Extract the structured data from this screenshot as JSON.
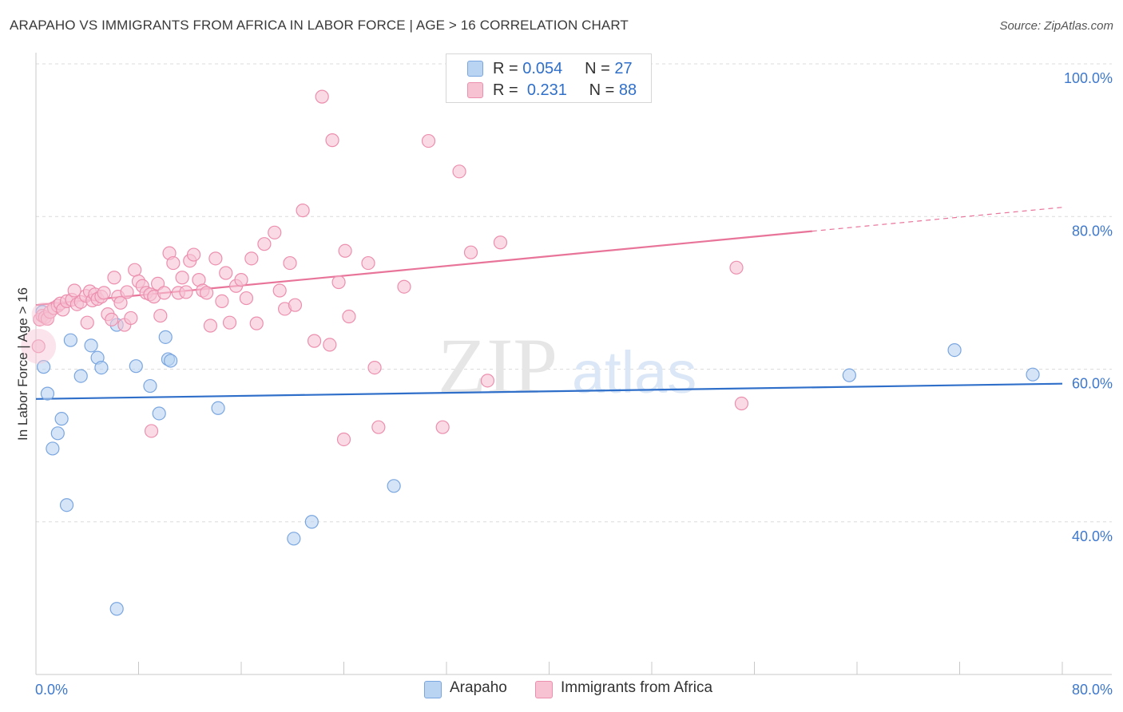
{
  "title": "ARAPAHO VS IMMIGRANTS FROM AFRICA IN LABOR FORCE | AGE > 16 CORRELATION CHART",
  "source": "Source: ZipAtlas.com",
  "watermark": {
    "zip": "ZIP",
    "atlas": "atlas"
  },
  "legend_top": [
    {
      "r_label": "R =",
      "r_value": "0.054",
      "n_label": "N =",
      "n_value": "27",
      "color": "#b9d3f2",
      "border": "#7aa6e0"
    },
    {
      "r_label": "R =",
      "r_value": "0.231",
      "n_label": "N =",
      "n_value": "88",
      "color": "#f7c3d3",
      "border": "#ec8fae"
    }
  ],
  "legend_bottom": [
    {
      "label": "Arapaho",
      "color": "#b9d3f2",
      "border": "#7aa6e0"
    },
    {
      "label": "Immigrants from Africa",
      "color": "#f7c3d3",
      "border": "#ec8fae"
    }
  ],
  "chart_data": {
    "type": "scatter",
    "xlabel": "",
    "ylabel": "In Labor Force | Age > 16",
    "xlim": [
      0,
      80
    ],
    "ylim": [
      20,
      100
    ],
    "x_tick_labels": [
      {
        "value": 0,
        "label": "0.0%"
      },
      {
        "value": 80,
        "label": "80.0%"
      }
    ],
    "y_tick_labels": [
      {
        "value": 100,
        "label": "100.0%"
      },
      {
        "value": 80,
        "label": "80.0%"
      },
      {
        "value": 60,
        "label": "60.0%"
      },
      {
        "value": 40,
        "label": "40.0%"
      }
    ],
    "grid": true,
    "series": [
      {
        "name": "Arapaho",
        "color": "#7aa6e0",
        "fill": "#b9d3f2",
        "line_color": "#2f6fc9",
        "trend": {
          "x": [
            0,
            80
          ],
          "y": [
            56.1,
            58.1
          ],
          "dashed_from": null
        },
        "points": [
          [
            0.5,
            67.5
          ],
          [
            0.6,
            60.3
          ],
          [
            0.9,
            56.8
          ],
          [
            1.3,
            49.6
          ],
          [
            1.7,
            51.6
          ],
          [
            2.0,
            53.5
          ],
          [
            2.4,
            42.2
          ],
          [
            2.7,
            63.8
          ],
          [
            3.5,
            59.1
          ],
          [
            4.3,
            63.1
          ],
          [
            4.8,
            61.5
          ],
          [
            5.1,
            60.2
          ],
          [
            6.3,
            28.6
          ],
          [
            6.3,
            65.8
          ],
          [
            7.8,
            60.4
          ],
          [
            8.9,
            57.8
          ],
          [
            9.6,
            54.2
          ],
          [
            10.1,
            64.2
          ],
          [
            10.3,
            61.3
          ],
          [
            10.5,
            61.1
          ],
          [
            14.2,
            54.9
          ],
          [
            20.1,
            37.8
          ],
          [
            21.5,
            40.0
          ],
          [
            27.9,
            44.7
          ],
          [
            63.4,
            59.2
          ],
          [
            71.6,
            62.5
          ],
          [
            77.7,
            59.3
          ]
        ]
      },
      {
        "name": "Immigrants from Africa",
        "color": "#ec8fae",
        "fill": "#f7c3d3",
        "line_color": "#e8749a",
        "trend": {
          "x": [
            0,
            80
          ],
          "y": [
            68.4,
            81.2
          ],
          "dashed_from": 60.5
        },
        "points": [
          [
            0.2,
            63.0
          ],
          [
            0.3,
            66.5
          ],
          [
            0.5,
            67.0
          ],
          [
            0.7,
            66.8
          ],
          [
            0.9,
            66.6
          ],
          [
            1.1,
            67.5
          ],
          [
            1.4,
            68.0
          ],
          [
            1.7,
            68.3
          ],
          [
            1.9,
            68.6
          ],
          [
            2.1,
            67.8
          ],
          [
            2.4,
            68.9
          ],
          [
            2.8,
            69.1
          ],
          [
            3.0,
            70.3
          ],
          [
            3.2,
            68.5
          ],
          [
            3.5,
            68.8
          ],
          [
            3.9,
            69.6
          ],
          [
            4.2,
            70.2
          ],
          [
            4.4,
            69.0
          ],
          [
            4.6,
            69.8
          ],
          [
            4.8,
            69.2
          ],
          [
            5.1,
            69.5
          ],
          [
            5.3,
            70.0
          ],
          [
            5.6,
            67.2
          ],
          [
            5.9,
            66.5
          ],
          [
            6.1,
            72.0
          ],
          [
            6.4,
            69.5
          ],
          [
            6.6,
            68.7
          ],
          [
            6.9,
            65.8
          ],
          [
            7.1,
            70.1
          ],
          [
            7.4,
            66.7
          ],
          [
            7.7,
            73.0
          ],
          [
            8.0,
            71.5
          ],
          [
            8.3,
            70.9
          ],
          [
            8.6,
            70.0
          ],
          [
            8.9,
            69.8
          ],
          [
            9.2,
            69.5
          ],
          [
            9.5,
            71.2
          ],
          [
            9.7,
            67.0
          ],
          [
            10.0,
            70.0
          ],
          [
            10.4,
            75.2
          ],
          [
            10.7,
            73.9
          ],
          [
            11.1,
            70.0
          ],
          [
            11.4,
            72.0
          ],
          [
            11.7,
            70.1
          ],
          [
            12.0,
            74.2
          ],
          [
            12.3,
            75.0
          ],
          [
            12.7,
            71.7
          ],
          [
            13.0,
            70.3
          ],
          [
            13.3,
            70.0
          ],
          [
            13.6,
            65.7
          ],
          [
            14.0,
            74.5
          ],
          [
            14.5,
            68.9
          ],
          [
            14.8,
            72.6
          ],
          [
            15.1,
            66.1
          ],
          [
            15.6,
            70.9
          ],
          [
            16.0,
            71.7
          ],
          [
            16.4,
            69.3
          ],
          [
            16.8,
            74.5
          ],
          [
            17.2,
            66.0
          ],
          [
            17.8,
            76.4
          ],
          [
            18.6,
            77.9
          ],
          [
            19.0,
            70.3
          ],
          [
            19.4,
            67.9
          ],
          [
            19.8,
            73.9
          ],
          [
            20.2,
            68.4
          ],
          [
            20.8,
            80.8
          ],
          [
            21.7,
            63.7
          ],
          [
            22.3,
            95.7
          ],
          [
            22.9,
            63.2
          ],
          [
            23.1,
            90.0
          ],
          [
            23.6,
            71.4
          ],
          [
            24.1,
            75.5
          ],
          [
            24.4,
            66.9
          ],
          [
            25.9,
            73.9
          ],
          [
            26.4,
            60.2
          ],
          [
            26.7,
            52.4
          ],
          [
            28.7,
            70.8
          ],
          [
            30.6,
            89.9
          ],
          [
            31.7,
            52.4
          ],
          [
            33.0,
            85.9
          ],
          [
            33.9,
            75.3
          ],
          [
            35.2,
            58.5
          ],
          [
            36.2,
            76.6
          ],
          [
            54.6,
            73.3
          ],
          [
            55.0,
            55.5
          ],
          [
            24.0,
            50.8
          ],
          [
            9.0,
            51.9
          ],
          [
            4.0,
            66.1
          ]
        ]
      }
    ]
  }
}
